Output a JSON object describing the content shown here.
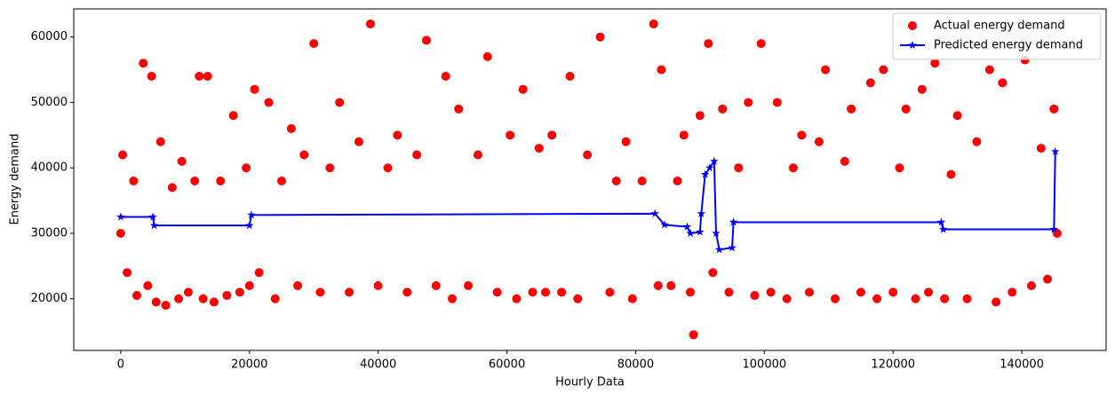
{
  "chart_data": {
    "type": "scatter",
    "xlabel": "Hourly Data",
    "ylabel": "Energy demand",
    "xlim": [
      -7300,
      153100
    ],
    "ylim": [
      12100,
      64300
    ],
    "xticks": [
      0,
      20000,
      40000,
      60000,
      80000,
      100000,
      120000,
      140000
    ],
    "yticks": [
      20000,
      30000,
      40000,
      50000,
      60000
    ],
    "legend": "upper right",
    "series": [
      {
        "name": "Actual energy demand",
        "type": "scatter",
        "color": "#ff0000",
        "x": [
          0,
          300,
          1000,
          2000,
          2500,
          3500,
          4200,
          4800,
          5500,
          6200,
          7000,
          8000,
          9000,
          9500,
          10500,
          11500,
          12200,
          12800,
          13500,
          14500,
          15500,
          16500,
          17500,
          18500,
          19500,
          20000,
          20800,
          21500,
          23000,
          24000,
          25000,
          26500,
          27500,
          28500,
          30000,
          31000,
          32500,
          34000,
          35500,
          37000,
          38800,
          40000,
          41500,
          43000,
          44500,
          46000,
          47500,
          49000,
          50500,
          51500,
          52500,
          54000,
          55500,
          57000,
          58500,
          60500,
          61500,
          62500,
          64000,
          65000,
          66000,
          67000,
          68500,
          69800,
          71000,
          72500,
          74500,
          76000,
          77000,
          78500,
          79500,
          81000,
          82800,
          83500,
          84000,
          85500,
          86500,
          87500,
          88500,
          89000,
          90000,
          91300,
          92000,
          93500,
          94500,
          96000,
          97500,
          98500,
          99500,
          101000,
          102000,
          103500,
          104500,
          105800,
          107000,
          108500,
          109500,
          111000,
          112500,
          113500,
          115000,
          116500,
          117500,
          118500,
          120000,
          121000,
          122000,
          123500,
          124500,
          125500,
          126500,
          128000,
          129000,
          130000,
          131500,
          133000,
          135000,
          136000,
          137000,
          138500,
          140500,
          141500,
          143000,
          144000,
          145000,
          145500
        ],
        "values": [
          30000,
          42000,
          24000,
          38000,
          20500,
          56000,
          22000,
          54000,
          19500,
          44000,
          19000,
          37000,
          20000,
          41000,
          21000,
          38000,
          54000,
          20000,
          54000,
          19500,
          38000,
          20500,
          48000,
          21000,
          40000,
          22000,
          52000,
          24000,
          50000,
          20000,
          38000,
          46000,
          22000,
          42000,
          59000,
          21000,
          40000,
          50000,
          21000,
          44000,
          62000,
          22000,
          40000,
          45000,
          21000,
          42000,
          59500,
          22000,
          54000,
          20000,
          49000,
          22000,
          42000,
          57000,
          21000,
          45000,
          20000,
          52000,
          21000,
          43000,
          21000,
          45000,
          21000,
          54000,
          20000,
          42000,
          60000,
          21000,
          38000,
          44000,
          20000,
          38000,
          62000,
          22000,
          55000,
          22000,
          38000,
          45000,
          21000,
          14500,
          48000,
          59000,
          24000,
          49000,
          21000,
          40000,
          50000,
          20500,
          59000,
          21000,
          50000,
          20000,
          40000,
          45000,
          21000,
          44000,
          55000,
          20000,
          41000,
          49000,
          21000,
          53000,
          20000,
          55000,
          21000,
          40000,
          49000,
          20000,
          52000,
          21000,
          56000,
          20000,
          39000,
          48000,
          20000,
          44000,
          55000,
          19500,
          53000,
          21000,
          56500,
          22000,
          43000,
          23000,
          49000,
          30000
        ]
      },
      {
        "name": "Predicted energy demand",
        "type": "line",
        "color": "#0000ff",
        "x": [
          0,
          5000,
          5200,
          20000,
          20300,
          83000,
          84500,
          88000,
          88500,
          90000,
          90200,
          90800,
          91500,
          92200,
          92500,
          93000,
          95000,
          95200,
          127500,
          127800,
          145000,
          145200
        ],
        "values": [
          32500,
          32500,
          31200,
          31200,
          32800,
          33000,
          31300,
          31000,
          30000,
          30200,
          33000,
          39000,
          40000,
          41000,
          30000,
          27500,
          27800,
          31700,
          31700,
          30600,
          30600,
          42500
        ]
      }
    ]
  }
}
